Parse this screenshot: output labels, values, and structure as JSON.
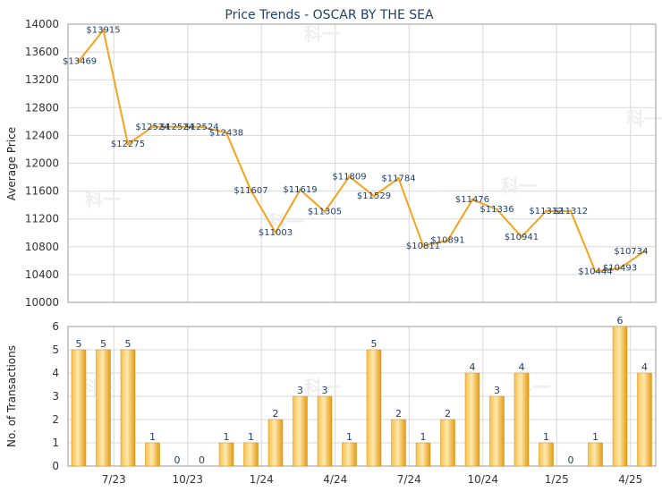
{
  "chart_data": [
    {
      "type": "line",
      "title": "Price Trends - OSCAR BY THE SEA",
      "ylabel": "Average Price",
      "ylim": [
        10000,
        14000
      ],
      "yticks": [
        10000,
        10400,
        10800,
        11200,
        11600,
        12000,
        12400,
        12800,
        13200,
        13600,
        14000
      ],
      "grid": true,
      "series": [
        {
          "color": "#f5a31a",
          "values": [
            13469,
            13915,
            12275,
            12524,
            12524,
            12524,
            12438,
            11607,
            11003,
            11619,
            11305,
            11809,
            11529,
            11784,
            10811,
            10891,
            11476,
            11336,
            10941,
            11312,
            11312,
            10444,
            10493,
            10734
          ],
          "labels": [
            "$13469",
            "$13915",
            "$12275",
            "$12524",
            "$12524",
            "$12524",
            "$12438",
            "$11607",
            "$11003",
            "$11619",
            "$11305",
            "$11809",
            "$11529",
            "$11784",
            "$10811",
            "$10891",
            "$11476",
            "$11336",
            "$10941",
            "$11312",
            "$11312",
            "$10444",
            "$10493",
            "$10734"
          ]
        }
      ]
    },
    {
      "type": "bar",
      "ylabel": "No. of Transactions",
      "ylim": [
        0,
        6
      ],
      "yticks": [
        0,
        1,
        2,
        3,
        4,
        5,
        6
      ],
      "grid": true,
      "values": [
        5,
        5,
        5,
        1,
        0,
        0,
        1,
        1,
        2,
        3,
        3,
        1,
        5,
        2,
        1,
        2,
        4,
        3,
        4,
        1,
        0,
        1,
        6,
        4
      ],
      "bar_color": "#f5a31a",
      "xtick_labels": [
        "7/23",
        "10/23",
        "1/24",
        "4/24",
        "7/24",
        "10/24",
        "1/25",
        "4/25"
      ],
      "xtick_positions": [
        2,
        5,
        8,
        11,
        14,
        17,
        20,
        23
      ]
    }
  ],
  "watermark": "科一"
}
